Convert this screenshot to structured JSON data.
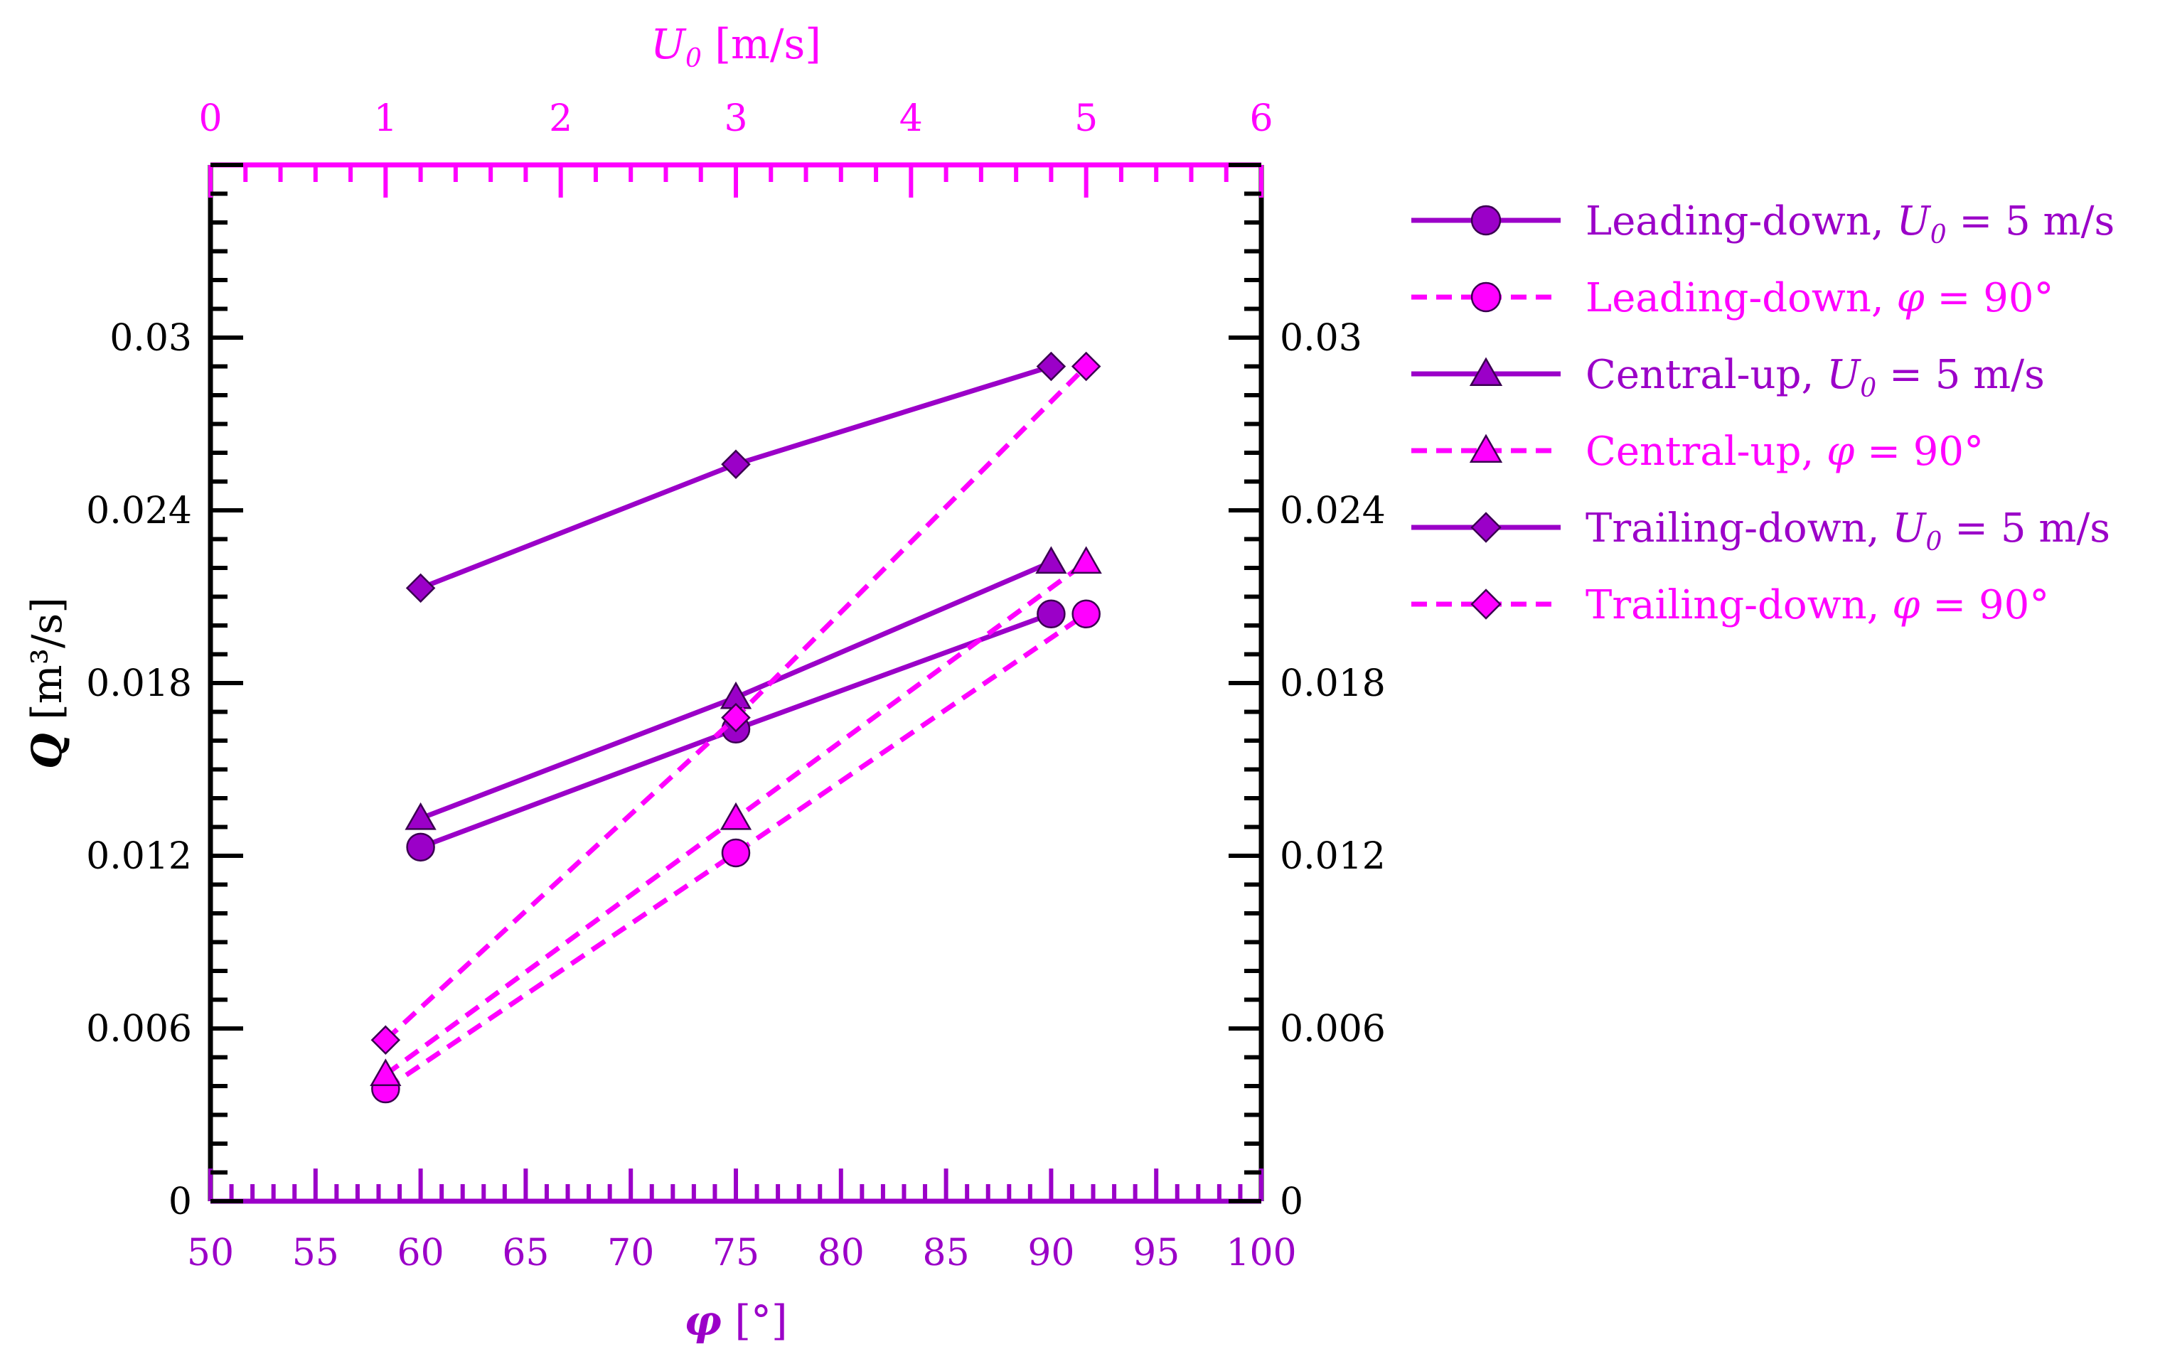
{
  "chart_data": {
    "type": "line",
    "colors": {
      "purple": "#9b00c8",
      "magenta": "#ff00ff",
      "axis": "#000000"
    },
    "x_bottom": {
      "label": "φ",
      "unit": " [°]",
      "range": [
        50,
        100
      ],
      "ticks": [
        "50",
        "55",
        "60",
        "65",
        "70",
        "75",
        "80",
        "85",
        "90",
        "95",
        "100"
      ]
    },
    "x_top": {
      "label": "U",
      "sub": "0",
      "unit": " [m/s]",
      "range": [
        0,
        6
      ],
      "ticks": [
        "0",
        "1",
        "2",
        "3",
        "4",
        "5",
        "6"
      ]
    },
    "y": {
      "label": "Q",
      "unit": " [m³/s]",
      "range": [
        0,
        0.036
      ],
      "ticks": [
        "0",
        "0.006",
        "0.012",
        "0.018",
        "0.024",
        "0.03"
      ]
    },
    "series": [
      {
        "name": "Leading-down, U0 = 5 m/s",
        "legend": {
          "prefix": "Leading-down, ",
          "var": "U",
          "sub": "0",
          "suffix": " = 5 m/s"
        },
        "axis": "bottom",
        "marker": "circle",
        "color": "purple",
        "dash": false,
        "x": [
          60,
          75,
          90
        ],
        "y": [
          0.0123,
          0.0164,
          0.0204
        ]
      },
      {
        "name": "Leading-down, φ = 90°",
        "legend": {
          "prefix": "Leading-down, ",
          "var": "φ",
          "sub": "",
          "suffix": " = 90°"
        },
        "axis": "top",
        "marker": "circle",
        "color": "magenta",
        "dash": true,
        "x": [
          1,
          3,
          5
        ],
        "y": [
          0.0039,
          0.0121,
          0.0204
        ]
      },
      {
        "name": "Central-up, U0 = 5 m/s",
        "legend": {
          "prefix": "Central-up, ",
          "var": "U",
          "sub": "0",
          "suffix": " = 5 m/s"
        },
        "axis": "bottom",
        "marker": "triangle",
        "color": "purple",
        "dash": false,
        "x": [
          60,
          75,
          90
        ],
        "y": [
          0.0133,
          0.0175,
          0.0222
        ]
      },
      {
        "name": "Central-up, φ = 90°",
        "legend": {
          "prefix": "Central-up, ",
          "var": "φ",
          "sub": "",
          "suffix": " = 90°"
        },
        "axis": "top",
        "marker": "triangle",
        "color": "magenta",
        "dash": true,
        "x": [
          1,
          3,
          5
        ],
        "y": [
          0.0044,
          0.0133,
          0.0222
        ]
      },
      {
        "name": "Trailing-down, U0 = 5 m/s",
        "legend": {
          "prefix": "Trailing-down, ",
          "var": "U",
          "sub": "0",
          "suffix": " = 5 m/s"
        },
        "axis": "bottom",
        "marker": "diamond",
        "color": "purple",
        "dash": false,
        "x": [
          60,
          75,
          90
        ],
        "y": [
          0.0213,
          0.0256,
          0.029
        ]
      },
      {
        "name": "Trailing-down, φ = 90°",
        "legend": {
          "prefix": "Trailing-down, ",
          "var": "φ",
          "sub": "",
          "suffix": " = 90°"
        },
        "axis": "top",
        "marker": "diamond",
        "color": "magenta",
        "dash": true,
        "x": [
          1,
          3,
          5
        ],
        "y": [
          0.0056,
          0.0168,
          0.029
        ]
      }
    ]
  }
}
